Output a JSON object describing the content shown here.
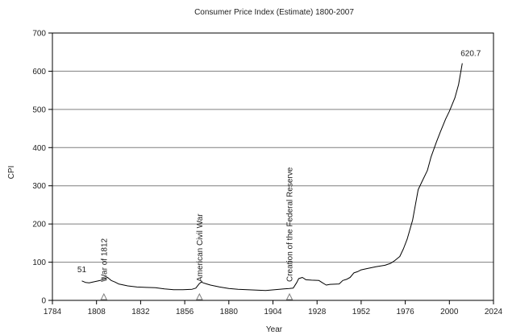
{
  "chart_data": {
    "type": "line",
    "title": "Consumer Price Index (Estimate) 1800-2007",
    "xlabel": "Year",
    "ylabel": "CPI",
    "xlim": [
      1784,
      2024
    ],
    "ylim": [
      0,
      700
    ],
    "x_ticks": [
      1784,
      1808,
      1832,
      1856,
      1880,
      1904,
      1928,
      1952,
      1976,
      2000,
      2024
    ],
    "y_ticks": [
      0,
      100,
      200,
      300,
      400,
      500,
      600,
      700
    ],
    "grid": "horizontal",
    "colors": {
      "line": "#000000",
      "grid": "#7f7f7f",
      "marker": "#808080"
    },
    "series": [
      {
        "x": [
          1800,
          1802,
          1804,
          1806,
          1808,
          1810,
          1812,
          1814,
          1816,
          1818,
          1820,
          1825,
          1830,
          1835,
          1840,
          1845,
          1850,
          1855,
          1860,
          1862,
          1864,
          1865,
          1866,
          1868,
          1870,
          1875,
          1880,
          1885,
          1890,
          1895,
          1900,
          1905,
          1910,
          1913,
          1915,
          1917,
          1918,
          1920,
          1922,
          1925,
          1929,
          1931,
          1933,
          1935,
          1940,
          1942,
          1944,
          1946,
          1948,
          1950,
          1952,
          1955,
          1960,
          1965,
          1968,
          1970,
          1973,
          1975,
          1977,
          1980,
          1983,
          1985,
          1988,
          1990,
          1993,
          1995,
          1998,
          2000,
          2003,
          2005,
          2007
        ],
        "values": [
          51,
          47,
          46,
          48,
          50,
          52,
          56,
          60,
          52,
          48,
          43,
          38,
          35,
          34,
          33,
          30,
          28,
          28,
          29,
          32,
          44,
          48,
          46,
          43,
          40,
          35,
          31,
          29,
          28,
          27,
          26,
          28,
          30,
          31,
          32,
          47,
          57,
          60,
          54,
          53,
          52,
          46,
          40,
          42,
          43,
          52,
          55,
          60,
          72,
          75,
          80,
          83,
          88,
          92,
          97,
          103,
          115,
          135,
          160,
          210,
          290,
          310,
          340,
          375,
          415,
          440,
          475,
          495,
          530,
          565,
          620.7
        ]
      }
    ],
    "annotations": [
      {
        "text": "51",
        "x": 1800,
        "y": 51
      },
      {
        "text": "620.7",
        "x": 2007,
        "y": 620.7
      },
      {
        "text": "War of 1812",
        "x": 1812
      },
      {
        "text": "American Civil War",
        "x": 1864
      },
      {
        "text": "Creation of the Federal Reserve",
        "x": 1913
      }
    ]
  }
}
